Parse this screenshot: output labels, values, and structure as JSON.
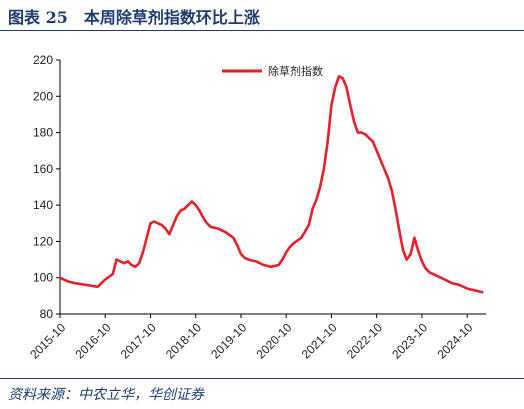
{
  "figure": {
    "title": "图表 25　本周除草剂指数环比上涨",
    "source": "资料来源：中农立华，华创证券"
  },
  "colors": {
    "series": "#e8202a",
    "frame": "#1f3a6e"
  },
  "chart_data": {
    "type": "line",
    "title": "",
    "xlabel": "",
    "ylabel": "",
    "ylim": [
      80,
      220
    ],
    "yticks": [
      "80",
      "100",
      "120",
      "140",
      "160",
      "180",
      "200",
      "220"
    ],
    "xlim": [
      "2015-10",
      "2025-03"
    ],
    "xticks": [
      "2015-10",
      "2016-10",
      "2017-10",
      "2018-10",
      "2019-10",
      "2020-10",
      "2021-10",
      "2022-10",
      "2023-10",
      "2024-10"
    ],
    "grid": false,
    "legend": "top-center",
    "series": [
      {
        "name": "除草剂指数",
        "color": "#e8202a",
        "points": [
          [
            "2015-10",
            100
          ],
          [
            "2015-12",
            98
          ],
          [
            "2016-02",
            97
          ],
          [
            "2016-05",
            96
          ],
          [
            "2016-08",
            95
          ],
          [
            "2016-10",
            99
          ],
          [
            "2016-12",
            102
          ],
          [
            "2017-01",
            110
          ],
          [
            "2017-02",
            109
          ],
          [
            "2017-03",
            108
          ],
          [
            "2017-04",
            109
          ],
          [
            "2017-05",
            107
          ],
          [
            "2017-06",
            106
          ],
          [
            "2017-07",
            108
          ],
          [
            "2017-08",
            114
          ],
          [
            "2017-09",
            122
          ],
          [
            "2017-10",
            130
          ],
          [
            "2017-11",
            131
          ],
          [
            "2017-12",
            130
          ],
          [
            "2018-01",
            129
          ],
          [
            "2018-02",
            127
          ],
          [
            "2018-03",
            124
          ],
          [
            "2018-04",
            129
          ],
          [
            "2018-05",
            134
          ],
          [
            "2018-06",
            137
          ],
          [
            "2018-07",
            138
          ],
          [
            "2018-08",
            140
          ],
          [
            "2018-09",
            142
          ],
          [
            "2018-10",
            140
          ],
          [
            "2018-11",
            137
          ],
          [
            "2018-12",
            133
          ],
          [
            "2019-01",
            130
          ],
          [
            "2019-02",
            128
          ],
          [
            "2019-04",
            127
          ],
          [
            "2019-06",
            125
          ],
          [
            "2019-08",
            122
          ],
          [
            "2019-09",
            118
          ],
          [
            "2019-10",
            113
          ],
          [
            "2019-11",
            111
          ],
          [
            "2019-12",
            110
          ],
          [
            "2020-02",
            109
          ],
          [
            "2020-04",
            107
          ],
          [
            "2020-06",
            106
          ],
          [
            "2020-08",
            107
          ],
          [
            "2020-09",
            110
          ],
          [
            "2020-10",
            114
          ],
          [
            "2020-11",
            117
          ],
          [
            "2020-12",
            119
          ],
          [
            "2021-02",
            122
          ],
          [
            "2021-04",
            129
          ],
          [
            "2021-05",
            138
          ],
          [
            "2021-06",
            143
          ],
          [
            "2021-07",
            150
          ],
          [
            "2021-08",
            160
          ],
          [
            "2021-09",
            175
          ],
          [
            "2021-10",
            195
          ],
          [
            "2021-11",
            205
          ],
          [
            "2021-12",
            211
          ],
          [
            "2022-01",
            210
          ],
          [
            "2022-02",
            205
          ],
          [
            "2022-03",
            195
          ],
          [
            "2022-04",
            186
          ],
          [
            "2022-05",
            180
          ],
          [
            "2022-06",
            180
          ],
          [
            "2022-07",
            179
          ],
          [
            "2022-08",
            177
          ],
          [
            "2022-09",
            175
          ],
          [
            "2022-10",
            170
          ],
          [
            "2022-11",
            165
          ],
          [
            "2022-12",
            160
          ],
          [
            "2023-01",
            155
          ],
          [
            "2023-02",
            148
          ],
          [
            "2023-03",
            138
          ],
          [
            "2023-04",
            126
          ],
          [
            "2023-05",
            115
          ],
          [
            "2023-06",
            110
          ],
          [
            "2023-07",
            113
          ],
          [
            "2023-08",
            122
          ],
          [
            "2023-09",
            115
          ],
          [
            "2023-10",
            109
          ],
          [
            "2023-11",
            105
          ],
          [
            "2023-12",
            103
          ],
          [
            "2024-02",
            101
          ],
          [
            "2024-04",
            99
          ],
          [
            "2024-06",
            97
          ],
          [
            "2024-08",
            96
          ],
          [
            "2024-10",
            94
          ],
          [
            "2024-12",
            93
          ],
          [
            "2025-02",
            92
          ]
        ]
      }
    ]
  }
}
